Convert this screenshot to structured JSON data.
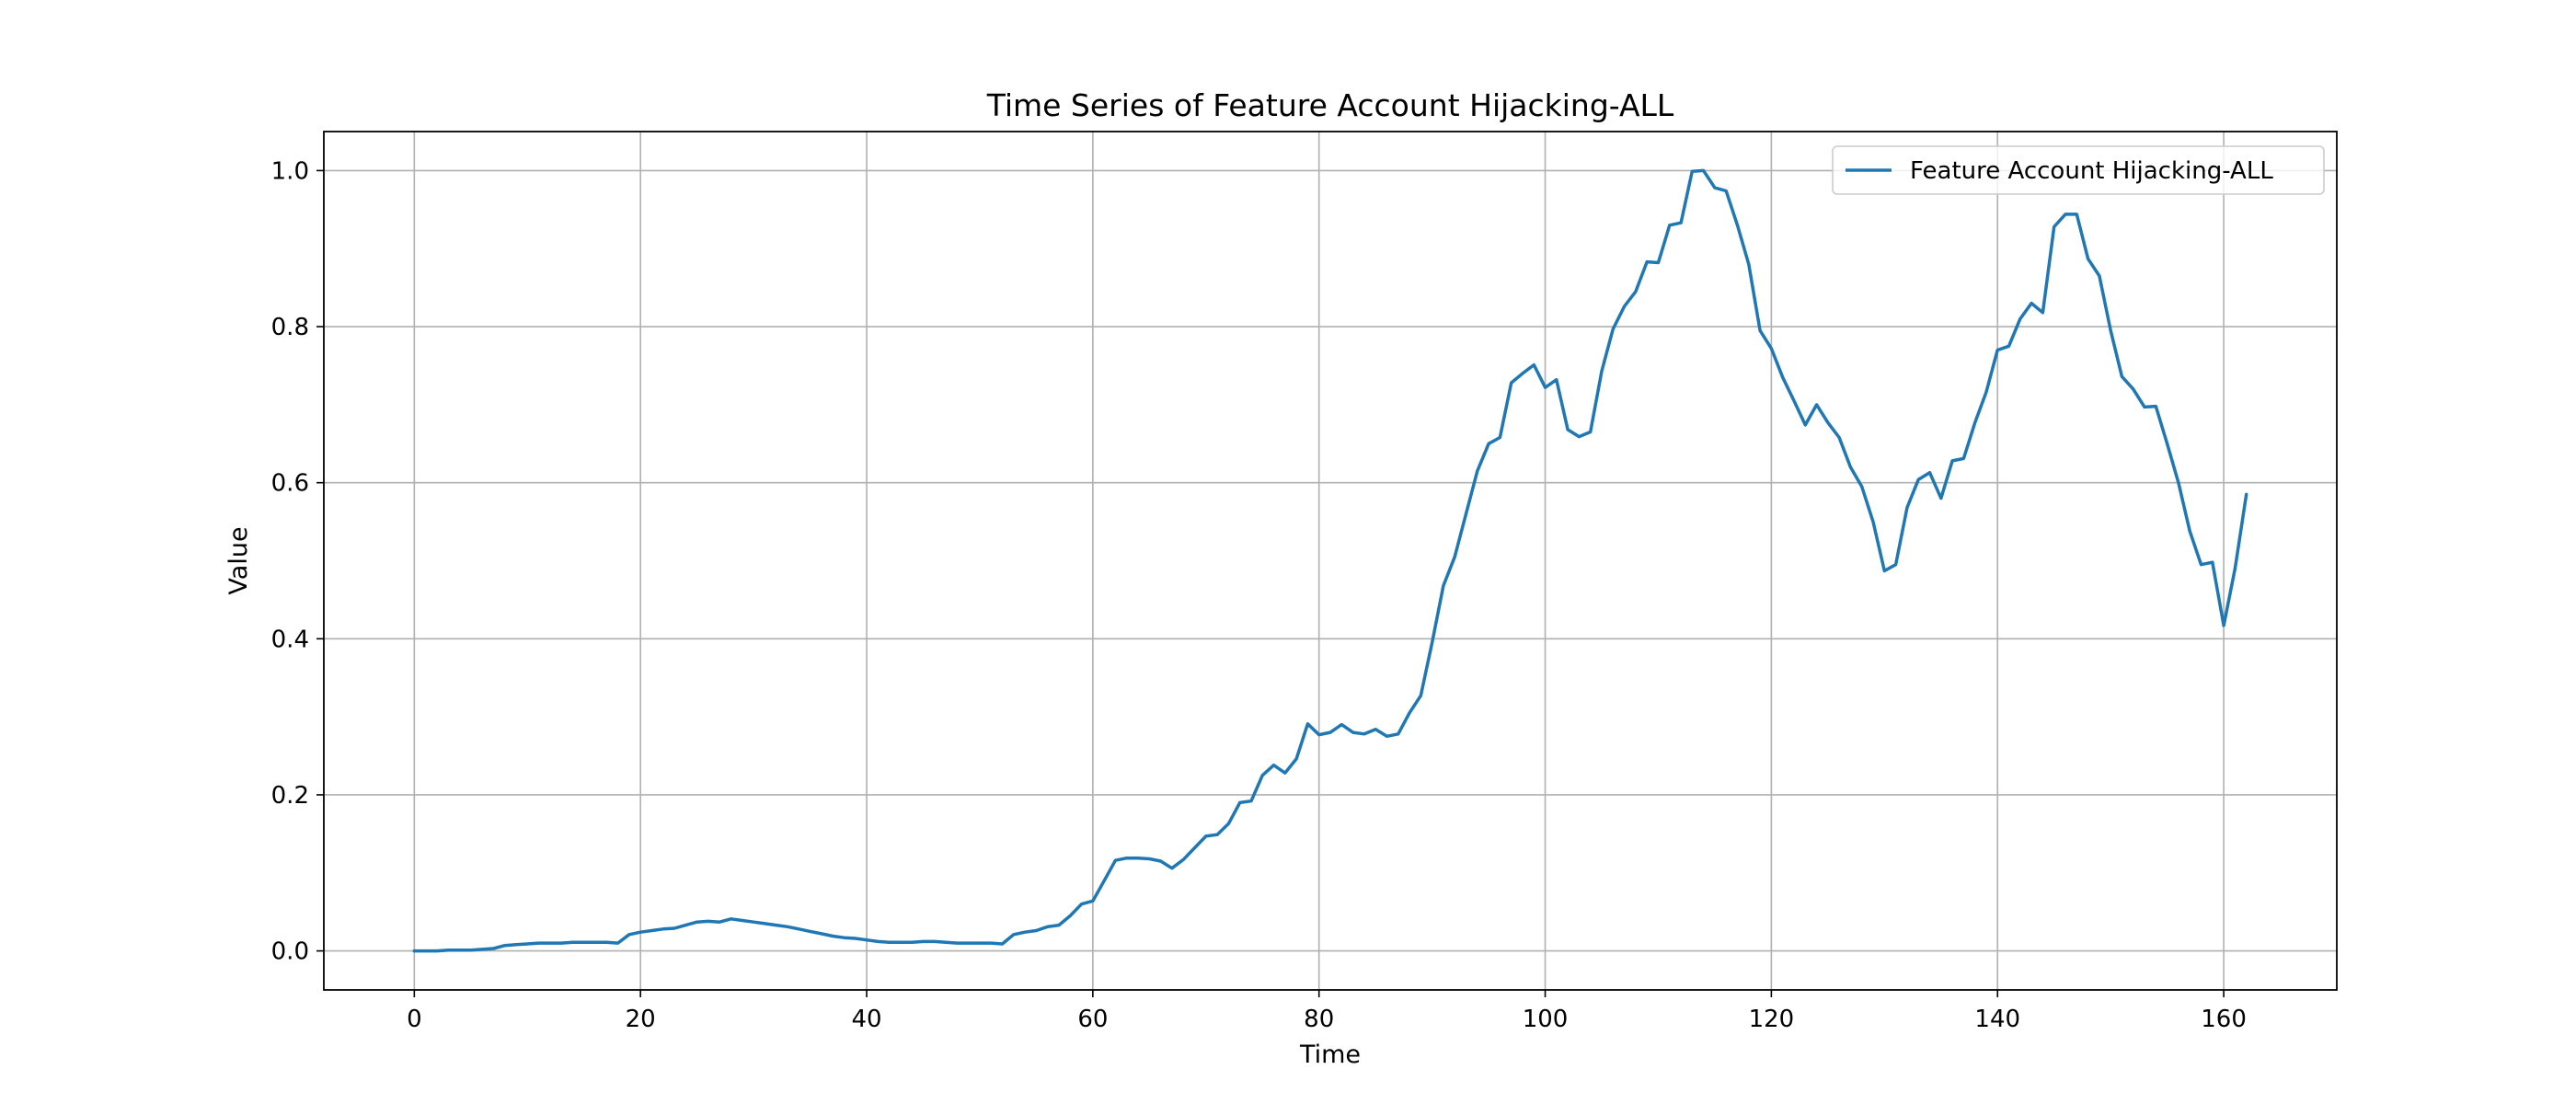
{
  "chart_data": {
    "type": "line",
    "title": "Time Series of Feature Account Hijacking-ALL",
    "xlabel": "Time",
    "ylabel": "Value",
    "xlim": [
      -8,
      170
    ],
    "ylim": [
      -0.05,
      1.05
    ],
    "xticks": [
      0,
      20,
      40,
      60,
      80,
      100,
      120,
      140,
      160
    ],
    "xtick_labels": [
      "0",
      "20",
      "40",
      "60",
      "80",
      "100",
      "120",
      "140",
      "160"
    ],
    "yticks": [
      0.0,
      0.2,
      0.4,
      0.6,
      0.8,
      1.0
    ],
    "ytick_labels": [
      "0.0",
      "0.2",
      "0.4",
      "0.6",
      "0.8",
      "1.0"
    ],
    "grid": true,
    "legend_position": "top-right",
    "series": [
      {
        "name": "Feature Account Hijacking-ALL",
        "color": "#1f77b4",
        "x": [
          0,
          1,
          2,
          3,
          4,
          5,
          6,
          7,
          8,
          9,
          10,
          11,
          12,
          13,
          14,
          15,
          16,
          17,
          18,
          19,
          20,
          21,
          22,
          23,
          24,
          25,
          26,
          27,
          28,
          29,
          30,
          31,
          32,
          33,
          34,
          35,
          36,
          37,
          38,
          39,
          40,
          41,
          42,
          43,
          44,
          45,
          46,
          47,
          48,
          49,
          50,
          51,
          52,
          53,
          54,
          55,
          56,
          57,
          58,
          59,
          60,
          61,
          62,
          63,
          64,
          65,
          66,
          67,
          68,
          69,
          70,
          71,
          72,
          73,
          74,
          75,
          76,
          77,
          78,
          79,
          80,
          81,
          82,
          83,
          84,
          85,
          86,
          87,
          88,
          89,
          90,
          91,
          92,
          93,
          94,
          95,
          96,
          97,
          98,
          99,
          100,
          101,
          102,
          103,
          104,
          105,
          106,
          107,
          108,
          109,
          110,
          111,
          112,
          113,
          114,
          115,
          116,
          117,
          118,
          119,
          120,
          121,
          122,
          123,
          124,
          125,
          126,
          127,
          128,
          129,
          130,
          131,
          132,
          133,
          134,
          135,
          136,
          137,
          138,
          139,
          140,
          141,
          142,
          143,
          144,
          145,
          146,
          147,
          148,
          149,
          150,
          151,
          152,
          153,
          154,
          155,
          156,
          157,
          158,
          159,
          160,
          161,
          162
        ],
        "y": [
          0.0,
          0.0,
          0.0,
          0.001,
          0.001,
          0.001,
          0.002,
          0.003,
          0.007,
          0.008,
          0.009,
          0.01,
          0.01,
          0.01,
          0.011,
          0.011,
          0.011,
          0.011,
          0.01,
          0.021,
          0.024,
          0.026,
          0.028,
          0.029,
          0.033,
          0.037,
          0.038,
          0.037,
          0.041,
          0.039,
          0.037,
          0.035,
          0.033,
          0.031,
          0.028,
          0.025,
          0.022,
          0.019,
          0.017,
          0.016,
          0.014,
          0.012,
          0.011,
          0.011,
          0.011,
          0.012,
          0.012,
          0.011,
          0.01,
          0.01,
          0.01,
          0.01,
          0.009,
          0.021,
          0.024,
          0.026,
          0.031,
          0.033,
          0.045,
          0.06,
          0.064,
          0.09,
          0.116,
          0.119,
          0.119,
          0.118,
          0.115,
          0.106,
          0.117,
          0.132,
          0.147,
          0.149,
          0.163,
          0.19,
          0.192,
          0.225,
          0.238,
          0.228,
          0.246,
          0.291,
          0.277,
          0.28,
          0.29,
          0.28,
          0.278,
          0.284,
          0.275,
          0.278,
          0.305,
          0.327,
          0.395,
          0.468,
          0.505,
          0.56,
          0.615,
          0.65,
          0.658,
          0.728,
          0.74,
          0.751,
          0.722,
          0.732,
          0.668,
          0.659,
          0.665,
          0.743,
          0.797,
          0.826,
          0.845,
          0.883,
          0.882,
          0.93,
          0.933,
          0.999,
          1.0,
          0.978,
          0.974,
          0.93,
          0.88,
          0.795,
          0.772,
          0.735,
          0.705,
          0.674,
          0.7,
          0.677,
          0.658,
          0.62,
          0.595,
          0.55,
          0.487,
          0.495,
          0.568,
          0.604,
          0.613,
          0.58,
          0.628,
          0.631,
          0.677,
          0.716,
          0.77,
          0.775,
          0.81,
          0.83,
          0.818,
          0.928,
          0.944,
          0.944,
          0.887,
          0.865,
          0.795,
          0.736,
          0.72,
          0.697,
          0.698,
          0.65,
          0.6,
          0.538,
          0.495,
          0.498,
          0.417,
          0.49,
          0.585
        ]
      }
    ]
  }
}
